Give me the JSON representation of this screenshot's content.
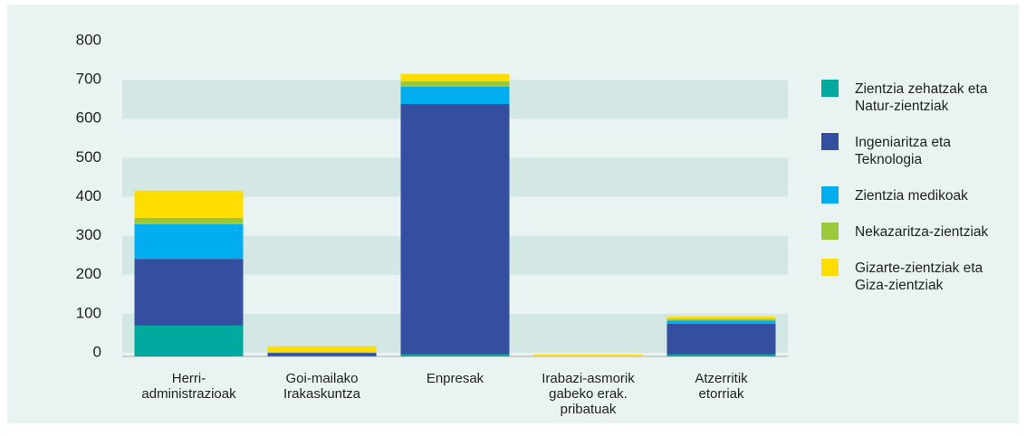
{
  "chart_data": {
    "type": "stacked_bar",
    "categories": [
      "Herri-\nadministrazioak",
      "Goi-mailako\nIrakaskuntza",
      "Enpresak",
      "Irabazi-asmorik\ngabeko erak.\npribatuak",
      "Atzerritik\netorriak"
    ],
    "series": [
      {
        "name": "Zientzia zehatzak eta\nNatur-zientziak",
        "color": "#00a99d",
        "values": [
          79,
          1,
          5,
          0,
          5
        ]
      },
      {
        "name": "Ingeniaritza eta\nTeknologia",
        "color": "#344ea0",
        "values": [
          171,
          8,
          642,
          0,
          79
        ]
      },
      {
        "name": "Zientzia medikoak",
        "color": "#00aeef",
        "values": [
          89,
          1,
          44,
          0,
          8
        ]
      },
      {
        "name": "Nekazaritza-zientziak",
        "color": "#9cc93b",
        "values": [
          16,
          0,
          14,
          0,
          4
        ]
      },
      {
        "name": "Gizarte-zientziak eta\nGiza-zientziak",
        "color": "#ffdd00",
        "values": [
          70,
          16,
          19,
          5,
          6
        ]
      }
    ],
    "ylim": [
      0,
      800
    ],
    "yticks": [
      0,
      100,
      200,
      300,
      400,
      500,
      600,
      700,
      800
    ],
    "grid": "bands"
  }
}
